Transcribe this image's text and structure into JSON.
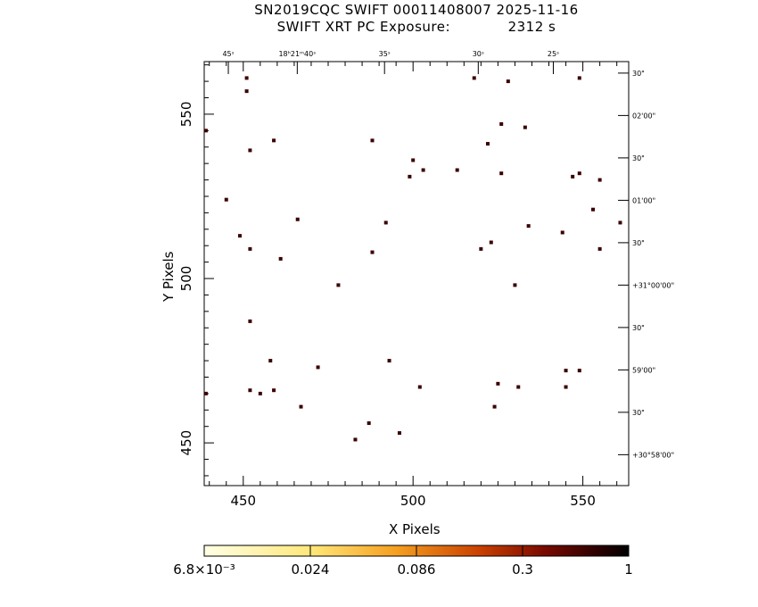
{
  "header": {
    "title_line1": "SN2019CQC SWIFT 00011408007 2025-11-16",
    "title_line2_left": "SWIFT XRT PC Exposure:",
    "title_line2_right": "2312 s"
  },
  "chart_data": {
    "type": "scatter",
    "title": "SN2019CQC SWIFT 00011408007 2025-11-16",
    "subtitle": "SWIFT XRT PC Exposure: 2312 s",
    "xlabel": "X Pixels",
    "ylabel": "Y Pixels",
    "xlim": [
      438.5,
      563.5
    ],
    "ylim": [
      437,
      566
    ],
    "x_ticks": [
      450,
      500,
      550
    ],
    "y_ticks": [
      450,
      500,
      550
    ],
    "ra_tick_labels": [
      "45ˢ",
      "18ʰ21ᵐ40ˢ",
      "35ˢ",
      "30ˢ",
      "25ˢ"
    ],
    "ra_tick_x": [
      445.6,
      465.9,
      491.6,
      519.2,
      541.3
    ],
    "dec_tick_labels": [
      "30\"",
      "02'00\"",
      "30\"",
      "01'00\"",
      "30\"",
      "+31°00'00\"",
      "30\"",
      "59'00\"",
      "30\"",
      "+30°58'00\""
    ],
    "dec_tick_y": [
      562.5,
      549.6,
      536.7,
      523.8,
      510.9,
      498.0,
      485.1,
      472.2,
      459.3,
      446.4
    ],
    "points": [
      [
        439,
        545
      ],
      [
        451,
        561
      ],
      [
        451,
        557
      ],
      [
        452,
        539
      ],
      [
        459,
        542
      ],
      [
        445,
        524
      ],
      [
        449,
        513
      ],
      [
        452,
        509
      ],
      [
        461,
        506
      ],
      [
        466,
        518
      ],
      [
        488,
        542
      ],
      [
        492,
        517
      ],
      [
        488,
        508
      ],
      [
        478,
        498
      ],
      [
        452,
        487
      ],
      [
        500,
        536
      ],
      [
        503,
        533
      ],
      [
        499,
        531
      ],
      [
        513,
        533
      ],
      [
        518,
        561
      ],
      [
        528,
        560
      ],
      [
        526,
        547
      ],
      [
        522,
        541
      ],
      [
        526,
        532
      ],
      [
        533,
        546
      ],
      [
        523,
        511
      ],
      [
        520,
        509
      ],
      [
        530,
        498
      ],
      [
        534,
        516
      ],
      [
        544,
        514
      ],
      [
        547,
        531
      ],
      [
        549,
        532
      ],
      [
        555,
        530
      ],
      [
        553,
        521
      ],
      [
        561,
        517
      ],
      [
        555,
        509
      ],
      [
        549,
        561
      ],
      [
        458,
        475
      ],
      [
        472,
        473
      ],
      [
        493,
        475
      ],
      [
        452,
        466
      ],
      [
        455,
        465
      ],
      [
        459,
        466
      ],
      [
        439,
        465
      ],
      [
        467,
        461
      ],
      [
        502,
        467
      ],
      [
        525,
        468
      ],
      [
        531,
        467
      ],
      [
        545,
        472
      ],
      [
        549,
        472
      ],
      [
        545,
        467
      ],
      [
        524,
        461
      ],
      [
        487,
        456
      ],
      [
        496,
        453
      ],
      [
        483,
        451
      ]
    ],
    "colorbar": {
      "labels": [
        "6.8×10⁻³",
        "0.024",
        "0.086",
        "0.3",
        "1"
      ],
      "scale": "log"
    },
    "grid": false,
    "legend": "none"
  }
}
